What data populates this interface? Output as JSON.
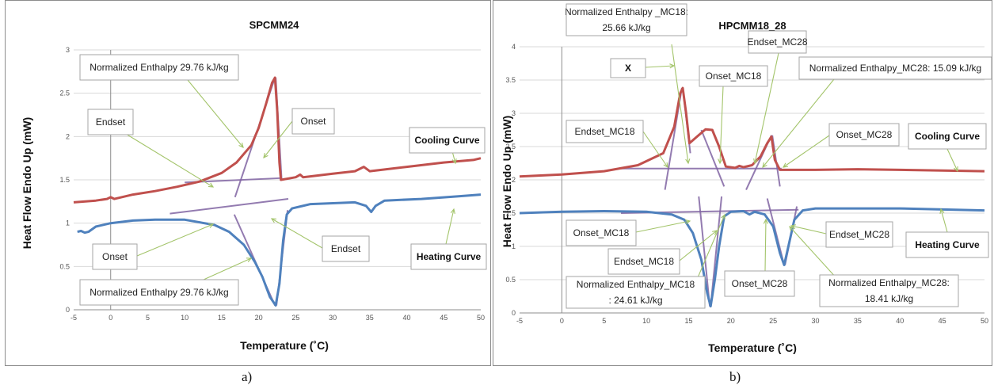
{
  "captions": {
    "a": "a)",
    "b": "b)"
  },
  "colors": {
    "cooling": "#c0504d",
    "heating": "#4f81bd",
    "tangent": "#8064a2",
    "leader": "#9bbb59"
  },
  "chart_data": [
    {
      "type": "line",
      "title": "SPCMM24",
      "xlabel": "Temperature (˚C)",
      "ylabel": "Heat Flow Endo Up (mW)",
      "xlim": [
        -5,
        50
      ],
      "ylim": [
        0,
        3
      ],
      "xticks": [
        "-5",
        "0",
        "5",
        "10",
        "15",
        "20",
        "25",
        "30",
        "35",
        "40",
        "45",
        "50"
      ],
      "yticks": [
        "0",
        "0.5",
        "1",
        "1.5",
        "2",
        "2.5",
        "3"
      ],
      "grid": true,
      "series": [
        {
          "name": "Cooling Curve",
          "color": "#c0504d",
          "points": [
            [
              -5,
              1.24
            ],
            [
              -2,
              1.26
            ],
            [
              -0.5,
              1.28
            ],
            [
              0,
              1.3
            ],
            [
              0.5,
              1.28
            ],
            [
              3,
              1.33
            ],
            [
              6,
              1.37
            ],
            [
              9,
              1.42
            ],
            [
              12,
              1.48
            ],
            [
              15,
              1.58
            ],
            [
              17,
              1.7
            ],
            [
              19,
              1.9
            ],
            [
              20,
              2.1
            ],
            [
              21,
              2.38
            ],
            [
              21.8,
              2.62
            ],
            [
              22.2,
              2.68
            ],
            [
              22.5,
              2.3
            ],
            [
              22.8,
              1.7
            ],
            [
              23,
              1.5
            ],
            [
              25,
              1.53
            ],
            [
              25.6,
              1.56
            ],
            [
              26,
              1.53
            ],
            [
              30,
              1.57
            ],
            [
              33,
              1.6
            ],
            [
              34.2,
              1.65
            ],
            [
              35,
              1.6
            ],
            [
              40,
              1.65
            ],
            [
              45,
              1.7
            ],
            [
              49,
              1.73
            ],
            [
              50,
              1.75
            ]
          ]
        },
        {
          "name": "Heating Curve",
          "color": "#4f81bd",
          "points": [
            [
              -4.5,
              0.9
            ],
            [
              -4,
              0.91
            ],
            [
              -3.5,
              0.89
            ],
            [
              -3,
              0.9
            ],
            [
              -2,
              0.96
            ],
            [
              0,
              1.0
            ],
            [
              3,
              1.03
            ],
            [
              6,
              1.04
            ],
            [
              10,
              1.04
            ],
            [
              14,
              0.98
            ],
            [
              16,
              0.9
            ],
            [
              18,
              0.75
            ],
            [
              19.5,
              0.55
            ],
            [
              20.5,
              0.38
            ],
            [
              21.5,
              0.15
            ],
            [
              22.3,
              0.05
            ],
            [
              22.8,
              0.3
            ],
            [
              23.3,
              0.8
            ],
            [
              23.8,
              1.1
            ],
            [
              24.5,
              1.17
            ],
            [
              27,
              1.22
            ],
            [
              33,
              1.24
            ],
            [
              34.5,
              1.2
            ],
            [
              35.2,
              1.13
            ],
            [
              35.8,
              1.2
            ],
            [
              37,
              1.26
            ],
            [
              42,
              1.28
            ],
            [
              47,
              1.31
            ],
            [
              50,
              1.33
            ]
          ]
        }
      ],
      "annotations": [
        "Normalized Enthalpy  29.76 kJ/kg",
        "Endset",
        "Onset",
        "Cooling Curve",
        "Onset",
        "Endset",
        "Heating Curve",
        "Normalized Enthalpy  29.76 kJ/kg"
      ]
    },
    {
      "type": "line",
      "title": "HPCMM18_28",
      "xlabel": "Temperature (˚C)",
      "ylabel": "Heat Flow Endo Up (mW)",
      "xlim": [
        -5,
        50
      ],
      "ylim": [
        0,
        4
      ],
      "xticks": [
        "-5",
        "0",
        "5",
        "10",
        "15",
        "20",
        "25",
        "30",
        "35",
        "40",
        "45",
        "50"
      ],
      "yticks": [
        "0",
        "0.5",
        "1",
        "1.5",
        "2",
        "2.5",
        "3",
        "3.5",
        "4"
      ],
      "grid": true,
      "series": [
        {
          "name": "Cooling Curve",
          "color": "#c0504d",
          "points": [
            [
              -5,
              2.05
            ],
            [
              0,
              2.08
            ],
            [
              5,
              2.13
            ],
            [
              9,
              2.22
            ],
            [
              12,
              2.4
            ],
            [
              13.3,
              2.8
            ],
            [
              14,
              3.3
            ],
            [
              14.3,
              3.38
            ],
            [
              14.7,
              3.0
            ],
            [
              15.1,
              2.55
            ],
            [
              16,
              2.65
            ],
            [
              17,
              2.76
            ],
            [
              17.8,
              2.75
            ],
            [
              18.6,
              2.5
            ],
            [
              19.4,
              2.2
            ],
            [
              20.5,
              2.18
            ],
            [
              21,
              2.21
            ],
            [
              21.5,
              2.19
            ],
            [
              22.5,
              2.22
            ],
            [
              23.5,
              2.35
            ],
            [
              24.3,
              2.55
            ],
            [
              24.8,
              2.65
            ],
            [
              25.2,
              2.3
            ],
            [
              25.8,
              2.15
            ],
            [
              30,
              2.15
            ],
            [
              35,
              2.16
            ],
            [
              40,
              2.15
            ],
            [
              45,
              2.14
            ],
            [
              50,
              2.13
            ]
          ]
        },
        {
          "name": "Heating Curve",
          "color": "#4f81bd",
          "points": [
            [
              -5,
              1.5
            ],
            [
              0,
              1.52
            ],
            [
              5,
              1.53
            ],
            [
              10,
              1.52
            ],
            [
              13,
              1.48
            ],
            [
              14.5,
              1.4
            ],
            [
              15.5,
              1.2
            ],
            [
              16.5,
              0.8
            ],
            [
              17.2,
              0.3
            ],
            [
              17.6,
              0.1
            ],
            [
              18.1,
              0.5
            ],
            [
              18.6,
              1.0
            ],
            [
              19.2,
              1.45
            ],
            [
              20,
              1.52
            ],
            [
              21.5,
              1.53
            ],
            [
              22.2,
              1.48
            ],
            [
              22.8,
              1.52
            ],
            [
              24,
              1.48
            ],
            [
              25,
              1.3
            ],
            [
              25.8,
              0.9
            ],
            [
              26.3,
              0.72
            ],
            [
              26.8,
              1.0
            ],
            [
              27.5,
              1.4
            ],
            [
              28.5,
              1.54
            ],
            [
              30,
              1.57
            ],
            [
              40,
              1.57
            ],
            [
              50,
              1.54
            ]
          ]
        }
      ],
      "annotations": [
        "Normalized Enthalpy _MC18:",
        "25.66 kJ/kg",
        "X",
        "Endset_MC28",
        "Onset_MC18",
        "Normalized Enthalpy_MC28:  15.09 kJ/kg",
        "Endset_MC18",
        "Onset_MC28",
        "Cooling Curve",
        "Onset_MC18",
        "Endset_MC28",
        "Heating Curve",
        "Endset_MC18",
        "Normalized Enthalpy_MC18",
        ": 24.61 kJ/kg",
        "Onset_MC28",
        "Normalized Enthalpy_MC28:",
        "18.41 kJ/kg"
      ]
    }
  ]
}
